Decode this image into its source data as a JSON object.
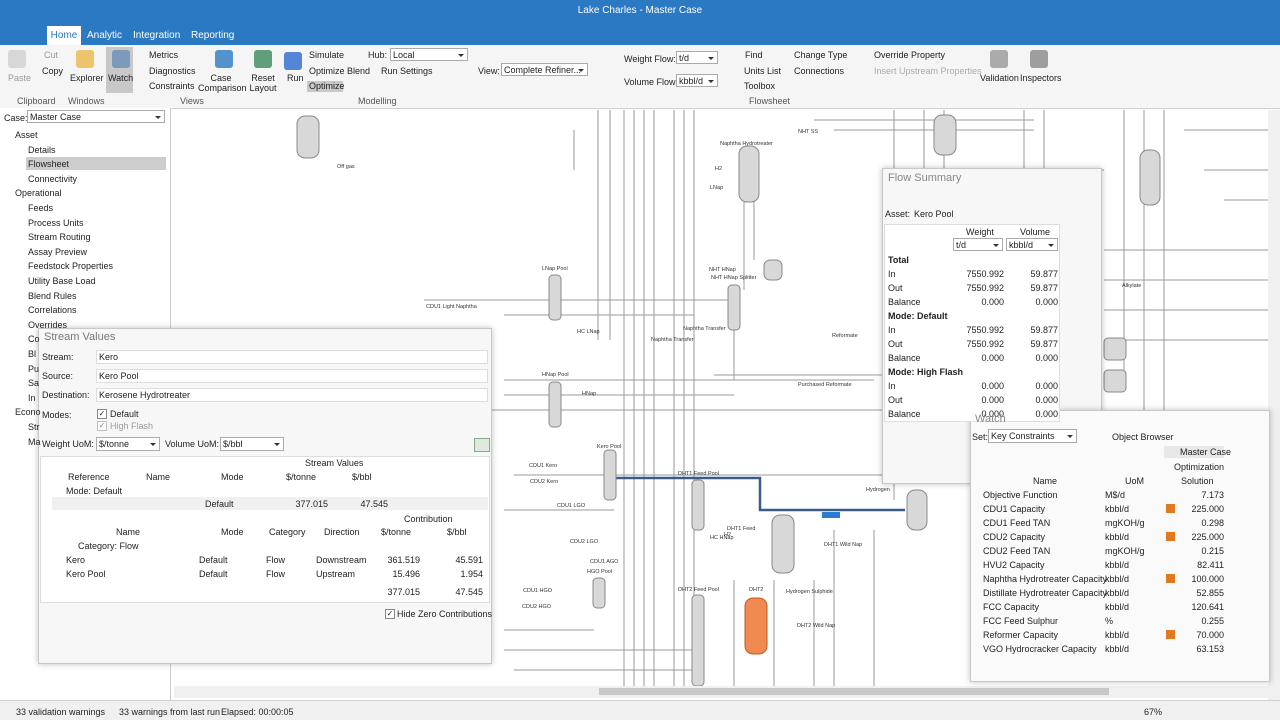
{
  "window": {
    "title": "Lake Charles - Master Case"
  },
  "tabs": [
    "Home",
    "Analytic",
    "Integration",
    "Reporting"
  ],
  "ribbon": {
    "clipboard": {
      "paste": "Paste",
      "cut": "Cut",
      "copy": "Copy",
      "label": "Clipboard"
    },
    "windows": {
      "explorer": "Explorer",
      "watch": "Watch",
      "label": "Windows"
    },
    "views": {
      "metrics": "Metrics",
      "diagnostics": "Diagnostics",
      "constraints": "Constraints",
      "case_comparison": "Case Comparison",
      "reset_layout": "Reset Layout",
      "label": "Views"
    },
    "modelling": {
      "run": "Run",
      "simulate": "Simulate",
      "optimize_blend": "Optimize Blend",
      "optimize": "Optimize",
      "hub_label": "Hub:",
      "hub": "Local",
      "run_settings": "Run Settings",
      "label": "Modelling"
    },
    "flowsheet": {
      "view_label": "View:",
      "view": "Complete Refiner...",
      "weight_flow_label": "Weight Flow:",
      "weight_flow": "t/d",
      "volume_flow_label": "Volume Flow:",
      "volume_flow": "kbbl/d",
      "find": "Find",
      "units_list": "Units List",
      "toolbox": "Toolbox",
      "change_type": "Change Type",
      "connections": "Connections",
      "override_property": "Override Property",
      "insert_upstream": "Insert Upstream Properties",
      "validation": "Validation",
      "inspectors": "Inspectors",
      "label": "Flowsheet"
    }
  },
  "navigator": {
    "case_label": "Case:",
    "case": "Master Case",
    "tree": [
      {
        "label": "Asset",
        "children": [
          "Details",
          "Flowsheet",
          "Connectivity"
        ]
      },
      {
        "label": "Operational",
        "children": [
          "Feeds",
          "Process Units",
          "Stream Routing",
          "Assay Preview",
          "Feedstock Properties",
          "Utility Base Load",
          "Blend Rules",
          "Correlations",
          "Overrides",
          "Co",
          "Bl",
          "Pu",
          "Sa",
          "In"
        ]
      },
      {
        "label": "Econo",
        "children": [
          "Str",
          "Ma"
        ]
      }
    ]
  },
  "flowsheet": {
    "labels": [
      "Off gas",
      "NHT SS",
      "Naphtha Hydrotreater",
      "H2",
      "LNap",
      "NHT HNap",
      "NHT HNap Splitter",
      "LNap Pool",
      "CDU1 Light Naphtha",
      "HC LNap",
      "Naphtha Transfer",
      "Naphtha Transfer",
      "Reformate",
      "HNap Pool",
      "HNap",
      "Purchased Reformate",
      "Kero Pool",
      "CDU1 Kero",
      "CDU2 Kero",
      "DHT1 Feed Pool",
      "CDU1 LGO",
      "DHT1 Feed",
      "HC HNap",
      "H2",
      "DHT1 Wild Nap",
      "Hydrogen",
      "CDU2 LGO",
      "CDU1 AGO",
      "HGO Pool",
      "CDU1 HGO",
      "CDU2 HGO",
      "DHT2 Feed Pool",
      "DHT2",
      "Hydrogen Sulphide",
      "DHT2 Wild Nap",
      "Alkylate"
    ]
  },
  "stream_values": {
    "title": "Stream Values",
    "fields": [
      {
        "label": "Stream:",
        "value": "Kero"
      },
      {
        "label": "Source:",
        "value": "Kero Pool"
      },
      {
        "label": "Destination:",
        "value": "Kerosene Hydrotreater"
      }
    ],
    "modes_label": "Modes:",
    "modes": [
      "Default",
      "High Flash"
    ],
    "weight_uom_label": "Weight UoM:",
    "weight_uom": "$/tonne",
    "volume_uom_label": "Volume UoM:",
    "volume_uom": "$/bbl",
    "values_header": "Stream Values",
    "values_columns": [
      "Reference",
      "Name",
      "Mode",
      "$/tonne",
      "$/bbl"
    ],
    "mode_group": "Mode: Default",
    "values_row": {
      "mode": "Default",
      "per_tonne": "377.015",
      "per_bbl": "47.545"
    },
    "contribution_header": "Contribution",
    "contribution_columns": [
      "Name",
      "Mode",
      "Category",
      "Direction",
      "$/tonne",
      "$/bbl"
    ],
    "category_group": "Category: Flow",
    "contribution_rows": [
      [
        "Kero",
        "Default",
        "Flow",
        "Downstream",
        "361.519",
        "45.591"
      ],
      [
        "Kero Pool",
        "Default",
        "Flow",
        "Upstream",
        "15.496",
        "1.954"
      ]
    ],
    "contribution_total": [
      "377.015",
      "47.545"
    ],
    "hide_zero": "Hide Zero Contributions"
  },
  "flow_summary": {
    "title": "Flow Summary",
    "asset_label": "Asset:",
    "asset": "Kero Pool",
    "columns": [
      "Weight",
      "Volume"
    ],
    "units": [
      "t/d",
      "kbbl/d"
    ],
    "sections": [
      {
        "name": "Total",
        "rows": [
          [
            "In",
            "7550.992",
            "59.877"
          ],
          [
            "Out",
            "7550.992",
            "59.877"
          ],
          [
            "Balance",
            "0.000",
            "0.000"
          ]
        ]
      },
      {
        "name": "Mode: Default",
        "rows": [
          [
            "In",
            "7550.992",
            "59.877"
          ],
          [
            "Out",
            "7550.992",
            "59.877"
          ],
          [
            "Balance",
            "0.000",
            "0.000"
          ]
        ]
      },
      {
        "name": "Mode: High Flash",
        "rows": [
          [
            "In",
            "0.000",
            "0.000"
          ],
          [
            "Out",
            "0.000",
            "0.000"
          ],
          [
            "Balance",
            "0.000",
            "0.000"
          ]
        ]
      }
    ]
  },
  "watch": {
    "title": "Watch",
    "set_label": "Set:",
    "set": "Key Constraints",
    "object_browser": "Object Browser",
    "case": "Master Case",
    "mode": "Optimization",
    "columns": [
      "Name",
      "UoM",
      "Solution"
    ],
    "rows": [
      [
        "Objective Function",
        "M$/d",
        "7.173"
      ],
      [
        "CDU1 Capacity",
        "kbbl/d",
        "225.000"
      ],
      [
        "CDU1 Feed TAN",
        "mgKOH/g",
        "0.298"
      ],
      [
        "CDU2 Capacity",
        "kbbl/d",
        "225.000"
      ],
      [
        "CDU2 Feed TAN",
        "mgKOH/g",
        "0.215"
      ],
      [
        "HVU2 Capacity",
        "kbbl/d",
        "82.411"
      ],
      [
        "Naphtha Hydrotreater Capacity",
        "kbbl/d",
        "100.000"
      ],
      [
        "Distillate Hydrotreater Capacity",
        "kbbl/d",
        "52.855"
      ],
      [
        "FCC Capacity",
        "kbbl/d",
        "120.641"
      ],
      [
        "FCC Feed Sulphur",
        "%",
        "0.255"
      ],
      [
        "Reformer Capacity",
        "kbbl/d",
        "70.000"
      ],
      [
        "VGO Hydrocracker Capacity",
        "kbbl/d",
        "63.153"
      ]
    ]
  },
  "status": {
    "validation": "33 validation warnings",
    "warnings": "33 warnings from last run",
    "elapsed": "Elapsed: 00:00:05",
    "zoom": "67%"
  }
}
